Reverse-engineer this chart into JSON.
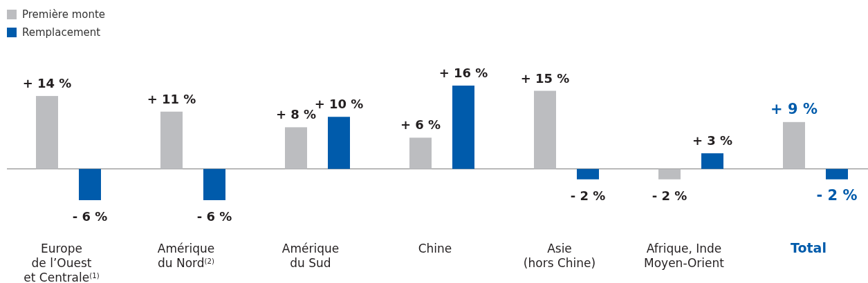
{
  "chart_data": {
    "type": "bar",
    "categories": [
      "Europe\nde l’Ouest\net Centrale$^{(1)}$",
      "Amérique\ndu Nord$^{(2)}$",
      "Amérique\ndu Sud",
      "Chine",
      "Asie\n(hors Chine)",
      "Afrique, Inde\nMoyen-Orient",
      "Total"
    ],
    "series": [
      {
        "name": "Première monte",
        "color": "#bcbdc0",
        "values": [
          14,
          11,
          8,
          6,
          15,
          -2,
          9
        ],
        "value_labels": [
          "+ 14 %",
          "+ 11 %",
          "+ 8 %",
          "+ 6 %",
          "+ 15 %",
          "- 2 %",
          "+ 9 %"
        ]
      },
      {
        "name": "Remplacement",
        "color": "#005bab",
        "values": [
          -6,
          -6,
          10,
          16,
          -2,
          3,
          -2
        ],
        "value_labels": [
          "- 6 %",
          "- 6 %",
          "+ 10 %",
          "+ 16 %",
          "- 2 %",
          "+ 3 %",
          "- 2 %"
        ]
      }
    ],
    "legend": "top left"
  }
}
